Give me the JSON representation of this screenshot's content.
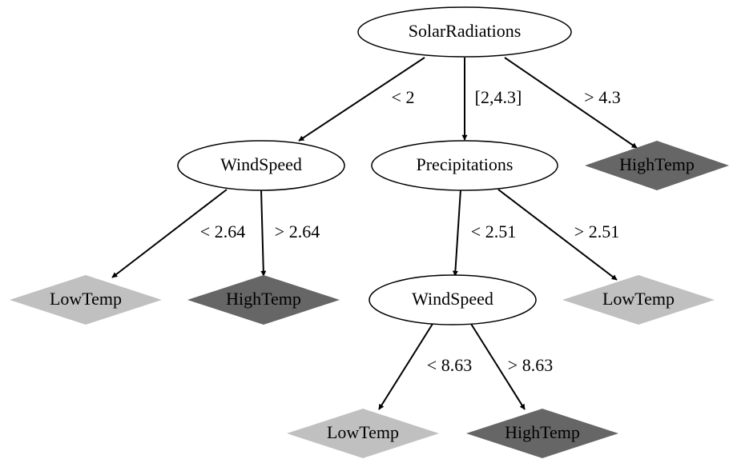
{
  "nodes": [
    {
      "label": "SolarRadiations",
      "shape": "ellipse",
      "fill": "#ffffff"
    },
    {
      "label": "WindSpeed",
      "shape": "ellipse",
      "fill": "#ffffff"
    },
    {
      "label": "Precipitations",
      "shape": "ellipse",
      "fill": "#ffffff"
    },
    {
      "label": "HighTemp",
      "shape": "diamond",
      "fill": "#666666"
    },
    {
      "label": "LowTemp",
      "shape": "diamond",
      "fill": "#c0c0c0"
    },
    {
      "label": "HighTemp",
      "shape": "diamond",
      "fill": "#666666"
    },
    {
      "label": "WindSpeed",
      "shape": "ellipse",
      "fill": "#ffffff"
    },
    {
      "label": "LowTemp",
      "shape": "diamond",
      "fill": "#c0c0c0"
    },
    {
      "label": "LowTemp",
      "shape": "diamond",
      "fill": "#c0c0c0"
    },
    {
      "label": "HighTemp",
      "shape": "diamond",
      "fill": "#666666"
    }
  ],
  "edges": [
    {
      "from": 0,
      "to": 1,
      "label": "< 2"
    },
    {
      "from": 0,
      "to": 2,
      "label": "[2,4.3]"
    },
    {
      "from": 0,
      "to": 3,
      "label": "> 4.3"
    },
    {
      "from": 1,
      "to": 4,
      "label": "< 2.64"
    },
    {
      "from": 1,
      "to": 5,
      "label": "> 2.64"
    },
    {
      "from": 2,
      "to": 6,
      "label": "< 2.51"
    },
    {
      "from": 2,
      "to": 7,
      "label": "> 2.51"
    },
    {
      "from": 6,
      "to": 8,
      "label": "< 8.63"
    },
    {
      "from": 6,
      "to": 9,
      "label": "> 8.63"
    }
  ]
}
